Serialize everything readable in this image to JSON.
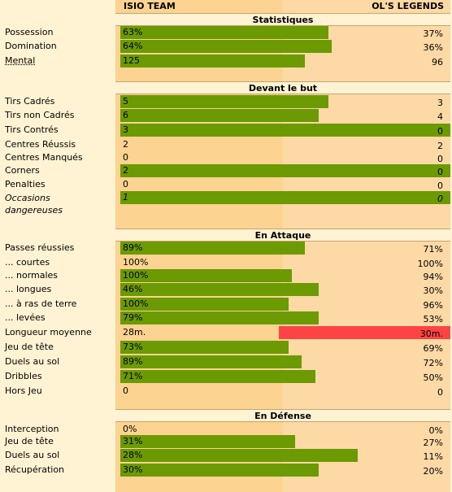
{
  "teams": {
    "home": "ISIO TEAM",
    "away": "OL'S LEGENDS"
  },
  "sections": [
    {
      "title": "Statistiques",
      "rows": [
        {
          "label": "Possession",
          "home": "63%",
          "away": "37%",
          "home_pct": 63,
          "away_pct": 0
        },
        {
          "label": "Domination",
          "home": "64%",
          "away": "36%",
          "home_pct": 64,
          "away_pct": 0
        },
        {
          "label": "Mental",
          "home": "125",
          "away": "96",
          "home_pct": 56,
          "away_pct": 0,
          "underline": true
        }
      ]
    },
    {
      "title": "Devant le but",
      "rows": [
        {
          "label": "Tirs Cadrés",
          "home": "5",
          "away": "3",
          "home_pct": 63,
          "away_pct": 0
        },
        {
          "label": "Tirs non Cadrés",
          "home": "6",
          "away": "4",
          "home_pct": 60,
          "away_pct": 0
        },
        {
          "label": "Tirs Contrés",
          "home": "3",
          "away": "0",
          "home_pct": 100,
          "away_pct": 0
        },
        {
          "label": "Centres Réussis",
          "home": "2",
          "away": "2",
          "home_pct": 0,
          "away_pct": 0
        },
        {
          "label": "Centres Manqués",
          "home": "0",
          "away": "0",
          "home_pct": 0,
          "away_pct": 0
        },
        {
          "label": "Corners",
          "home": "2",
          "away": "0",
          "home_pct": 100,
          "away_pct": 0
        },
        {
          "label": "Penalties",
          "home": "0",
          "away": "0",
          "home_pct": 0,
          "away_pct": 0
        },
        {
          "label": "Occasions dangereuses",
          "home": "1",
          "away": "0",
          "home_pct": 100,
          "away_pct": 0,
          "italic": true
        }
      ]
    },
    {
      "title": "En Attaque",
      "rows": [
        {
          "label": "Passes réussies",
          "home": "89%",
          "away": "71%",
          "home_pct": 56,
          "away_pct": 0
        },
        {
          "label": "... courtes",
          "home": "100%",
          "away": "100%",
          "home_pct": 0,
          "away_pct": 0
        },
        {
          "label": "... normales",
          "home": "100%",
          "away": "94%",
          "home_pct": 52,
          "away_pct": 0
        },
        {
          "label": "... longues",
          "home": "46%",
          "away": "30%",
          "home_pct": 60,
          "away_pct": 0
        },
        {
          "label": "... à ras de terre",
          "home": "100%",
          "away": "96%",
          "home_pct": 51,
          "away_pct": 0
        },
        {
          "label": "... levées",
          "home": "79%",
          "away": "53%",
          "home_pct": 60,
          "away_pct": 0
        },
        {
          "label": "Longueur moyenne",
          "home": "28m.",
          "away": "30m.",
          "home_pct": 0,
          "away_pct": 52
        },
        {
          "label": "Jeu de tête",
          "home": "73%",
          "away": "69%",
          "home_pct": 51,
          "away_pct": 0
        },
        {
          "label": "Duels au sol",
          "home": "89%",
          "away": "72%",
          "home_pct": 55,
          "away_pct": 0
        },
        {
          "label": "Dribbles",
          "home": "71%",
          "away": "50%",
          "home_pct": 59,
          "away_pct": 0
        },
        {
          "label": "Hors Jeu",
          "home": "0",
          "away": "0",
          "home_pct": 0,
          "away_pct": 0
        }
      ]
    },
    {
      "title": "En Défense",
      "rows": [
        {
          "label": "Interception",
          "home": "0%",
          "away": "0%",
          "home_pct": 0,
          "away_pct": 0
        },
        {
          "label": "Jeu de tête",
          "home": "31%",
          "away": "27%",
          "home_pct": 53,
          "away_pct": 0
        },
        {
          "label": "Duels au sol",
          "home": "28%",
          "away": "11%",
          "home_pct": 72,
          "away_pct": 0
        },
        {
          "label": "Récupération",
          "home": "30%",
          "away": "20%",
          "home_pct": 60,
          "away_pct": 0
        }
      ]
    }
  ],
  "colors": {
    "bar": "#6b9a02",
    "bar_loss": "#fd4444"
  }
}
